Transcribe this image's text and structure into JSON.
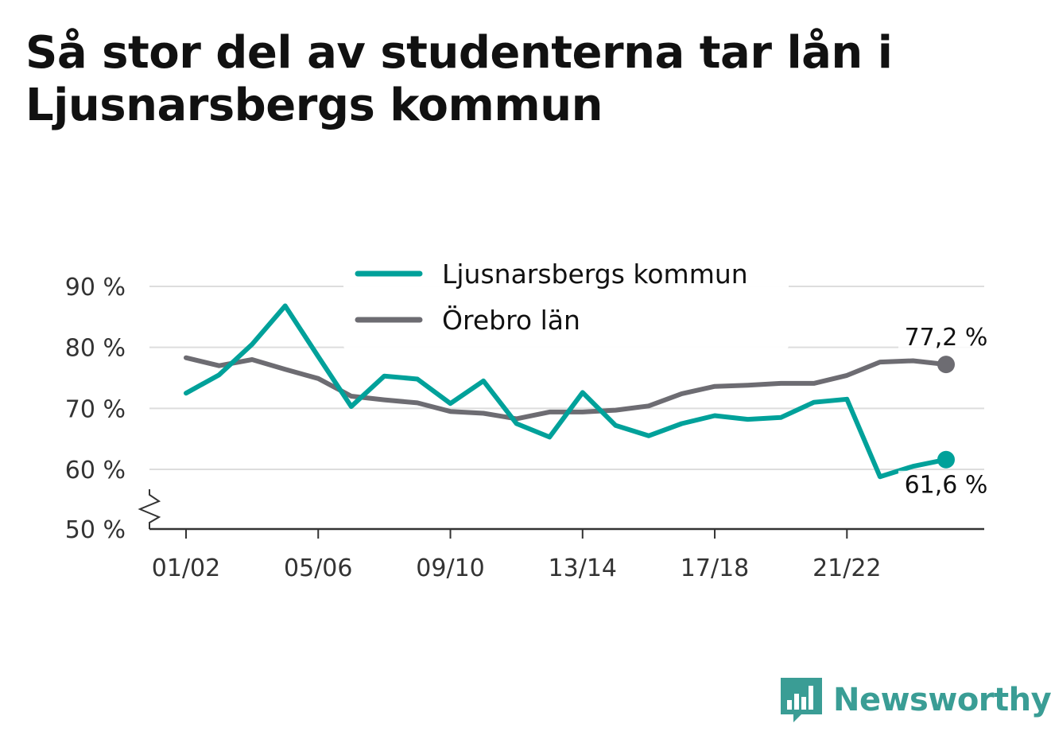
{
  "title": "Så stor del av studenterna tar lån i Ljusnarsbergs kommun",
  "brand": {
    "name": "Newsworthy",
    "icon": "bar-chart-speech-icon",
    "color": "#3a9d95"
  },
  "chart_data": {
    "type": "line",
    "title": "Så stor del av studenterna tar lån i Ljusnarsbergs kommun",
    "xlabel": "",
    "ylabel": "",
    "x": [
      "01/02",
      "02/03",
      "03/04",
      "04/05",
      "05/06",
      "06/07",
      "07/08",
      "08/09",
      "09/10",
      "10/11",
      "11/12",
      "12/13",
      "13/14",
      "14/15",
      "15/16",
      "16/17",
      "17/18",
      "18/19",
      "19/20",
      "20/21",
      "21/22",
      "22/23",
      "23/24",
      "24/25"
    ],
    "x_tick_labels": [
      "01/02",
      "05/06",
      "09/10",
      "13/14",
      "17/18",
      "21/22"
    ],
    "y_ticks": [
      50,
      60,
      70,
      80,
      90
    ],
    "y_tick_labels": [
      "50 %",
      "60 %",
      "70 %",
      "80 %",
      "90 %"
    ],
    "ylim": [
      50,
      90
    ],
    "y_axis_break": true,
    "grid": true,
    "legend_position": "top-center",
    "series": [
      {
        "name": "Ljusnarsbergs kommun",
        "color": "#00a19a",
        "values": [
          72.5,
          75.5,
          80.5,
          86.8,
          78.5,
          70.3,
          75.3,
          74.8,
          70.8,
          74.5,
          67.5,
          65.3,
          72.6,
          67.2,
          65.5,
          67.5,
          68.8,
          68.2,
          68.5,
          71.0,
          71.5,
          58.8,
          60.5,
          61.6
        ],
        "end_label": "61,6 %"
      },
      {
        "name": "Örebro län",
        "color": "#6d6c72",
        "values": [
          78.3,
          77.0,
          78.0,
          76.4,
          74.9,
          72.0,
          71.4,
          70.9,
          69.5,
          69.2,
          68.3,
          69.4,
          69.4,
          69.7,
          70.4,
          72.4,
          73.6,
          73.8,
          74.1,
          74.1,
          75.4,
          77.6,
          77.8,
          77.2
        ],
        "end_label": "77,2 %"
      }
    ]
  }
}
